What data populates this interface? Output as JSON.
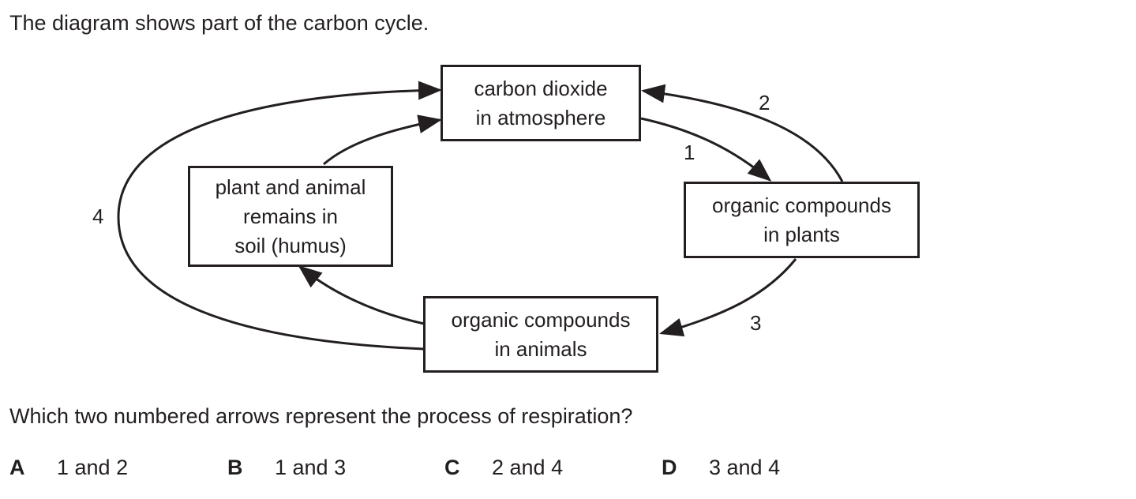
{
  "intro": "The diagram shows part of the carbon cycle.",
  "boxes": {
    "atmosphere": "carbon dioxide\nin atmosphere",
    "humus": "plant and animal\nremains in\nsoil (humus)",
    "plants": "organic compounds\nin plants",
    "animals": "organic compounds\nin animals"
  },
  "arrow_labels": {
    "one": "1",
    "two": "2",
    "three": "3",
    "four": "4"
  },
  "question": "Which two numbered arrows represent the process of respiration?",
  "options": [
    {
      "letter": "A",
      "text": "1 and 2"
    },
    {
      "letter": "B",
      "text": "1 and 3"
    },
    {
      "letter": "C",
      "text": "2 and 4"
    },
    {
      "letter": "D",
      "text": "3 and 4"
    }
  ]
}
